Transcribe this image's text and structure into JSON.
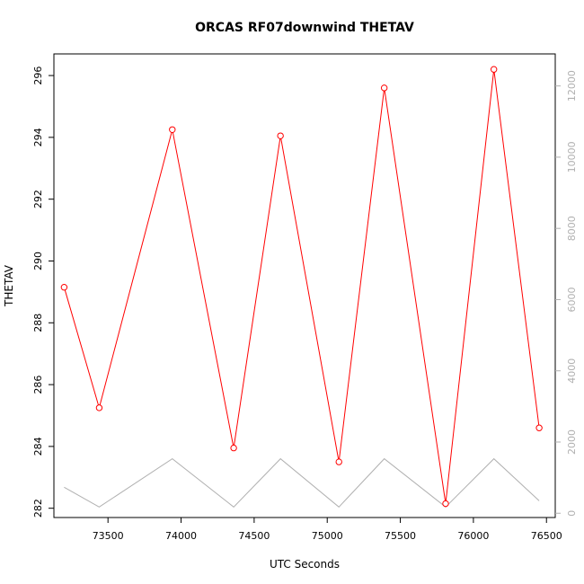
{
  "chart_data": {
    "type": "line",
    "title": "ORCAS RF07downwind THETAV",
    "xlabel": "UTC Seconds",
    "ylabel": "THETAV",
    "xlim": [
      73130,
      76560
    ],
    "ylim": [
      281.7,
      296.7
    ],
    "y2lim": [
      -120,
      12900
    ],
    "x_ticks": [
      73500,
      74000,
      74500,
      75000,
      75500,
      76000,
      76500
    ],
    "y_ticks": [
      282,
      284,
      286,
      288,
      290,
      292,
      294,
      296
    ],
    "y2_ticks": [
      0,
      2000,
      4000,
      6000,
      8000,
      10000,
      12000
    ],
    "grid": false,
    "series": [
      {
        "color": "#ff0000",
        "axis": "left",
        "marker": "open-circle",
        "x": [
          73200,
          73440,
          73940,
          74360,
          74680,
          75080,
          75390,
          75810,
          76140,
          76450
        ],
        "values": [
          289.15,
          285.25,
          294.25,
          283.95,
          294.05,
          283.5,
          295.6,
          282.15,
          296.2,
          284.6
        ]
      },
      {
        "color": "#b0b0b0",
        "axis": "right",
        "marker": "none",
        "x": [
          73200,
          73440,
          73940,
          74360,
          74680,
          75080,
          75390,
          75810,
          76140,
          76450
        ],
        "values": [
          730,
          175,
          1530,
          175,
          1530,
          175,
          1530,
          175,
          1530,
          350
        ]
      }
    ]
  }
}
